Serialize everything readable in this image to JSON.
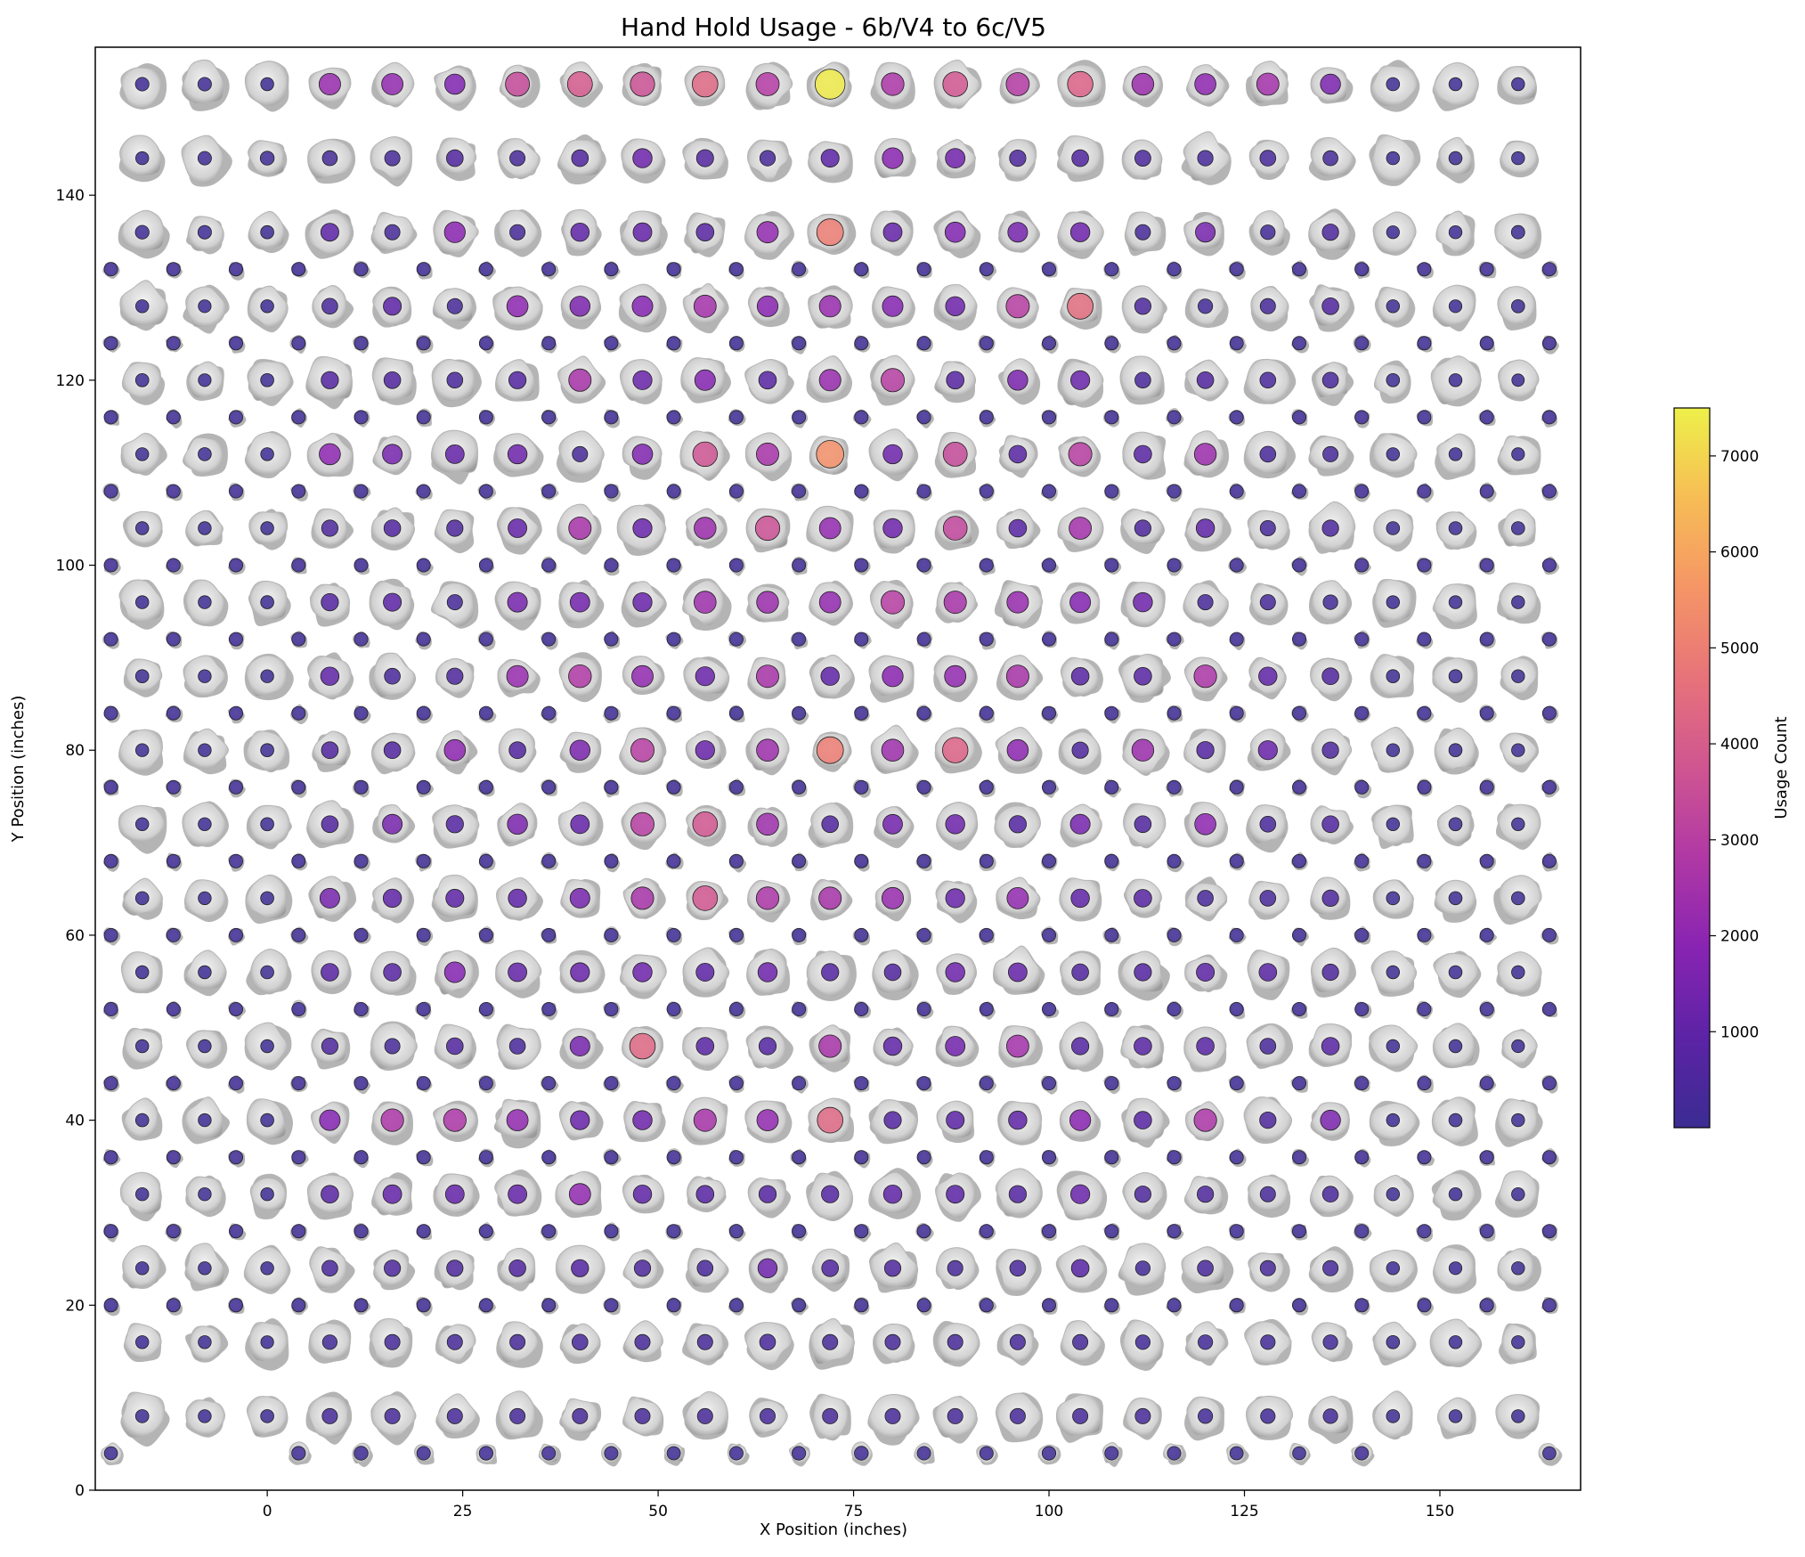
{
  "chart_data": {
    "type": "scatter",
    "title": "Hand Hold Usage - 6b/V4 to 6c/V5",
    "xlabel": "X Position (inches)",
    "ylabel": "Y Position (inches)",
    "colorbar_label": "Usage Count",
    "colormap": "plasma",
    "xlim": [
      -22,
      168
    ],
    "ylim": [
      0,
      156
    ],
    "xticks": [
      0,
      25,
      50,
      75,
      100,
      125,
      150
    ],
    "yticks": [
      0,
      20,
      40,
      60,
      80,
      100,
      120,
      140
    ],
    "colorbar_range": [
      0,
      7500
    ],
    "colorbar_ticks": [
      1000,
      2000,
      3000,
      4000,
      5000,
      6000,
      7000
    ],
    "grid": false,
    "main_columns_x": [
      -16,
      -8,
      0,
      8,
      16,
      24,
      32,
      40,
      48,
      56,
      64,
      72,
      80,
      88,
      96,
      104,
      112,
      120,
      128,
      136,
      144,
      152,
      160
    ],
    "main_rows_y": [
      152,
      144,
      136,
      128,
      120,
      112,
      104,
      96,
      88,
      80,
      72,
      64,
      56,
      48,
      40,
      32,
      24,
      16,
      8
    ],
    "main_grid_usage": [
      [
        80,
        90,
        40,
        2200,
        2100,
        1700,
        3400,
        3900,
        3600,
        4300,
        2900,
        7400,
        2700,
        3800,
        2900,
        4200,
        2300,
        2000,
        2500,
        1600,
        60,
        50,
        40
      ],
      [
        40,
        80,
        110,
        250,
        300,
        600,
        300,
        600,
        1300,
        650,
        350,
        900,
        1900,
        1400,
        500,
        600,
        450,
        350,
        400,
        250,
        50,
        60,
        40
      ],
      [
        100,
        80,
        60,
        900,
        300,
        1900,
        300,
        1000,
        1100,
        800,
        2100,
        5000,
        1100,
        1700,
        1500,
        1300,
        300,
        1500,
        200,
        500,
        30,
        40,
        70
      ],
      [
        40,
        30,
        40,
        400,
        900,
        300,
        2000,
        1600,
        1800,
        2500,
        1900,
        2200,
        1800,
        1300,
        3000,
        4500,
        500,
        200,
        300,
        600,
        50,
        30,
        60
      ],
      [
        60,
        30,
        60,
        700,
        600,
        400,
        700,
        2600,
        1200,
        1800,
        800,
        2200,
        3000,
        800,
        1600,
        1200,
        400,
        600,
        400,
        400,
        60,
        50,
        20
      ],
      [
        50,
        60,
        40,
        2000,
        1500,
        1100,
        1300,
        300,
        1700,
        3700,
        2600,
        5500,
        1300,
        3400,
        800,
        3000,
        800,
        2300,
        400,
        300,
        50,
        40,
        30
      ],
      [
        50,
        40,
        40,
        500,
        600,
        500,
        1100,
        2600,
        1200,
        2300,
        3600,
        2100,
        1300,
        3300,
        800,
        2500,
        500,
        1000,
        300,
        500,
        60,
        60,
        60
      ],
      [
        40,
        50,
        60,
        700,
        900,
        300,
        1500,
        1400,
        1200,
        2400,
        2300,
        2100,
        3000,
        2600,
        2200,
        1800,
        1300,
        300,
        300,
        200,
        40,
        50,
        40
      ],
      [
        60,
        40,
        40,
        1000,
        400,
        500,
        2200,
        2800,
        2100,
        1200,
        2600,
        1000,
        1900,
        2100,
        2600,
        800,
        800,
        2700,
        1000,
        600,
        60,
        60,
        50
      ],
      [
        50,
        40,
        60,
        600,
        600,
        2000,
        600,
        1600,
        3000,
        1200,
        2400,
        5000,
        2400,
        4200,
        2000,
        500,
        2300,
        700,
        1200,
        500,
        50,
        60,
        50
      ],
      [
        50,
        40,
        60,
        600,
        1500,
        700,
        1600,
        1100,
        3000,
        3800,
        2400,
        600,
        1400,
        1300,
        700,
        1500,
        600,
        2000,
        400,
        600,
        40,
        60,
        50
      ],
      [
        60,
        50,
        60,
        1500,
        1000,
        900,
        1000,
        1500,
        2600,
        3800,
        2700,
        2600,
        2200,
        1200,
        2100,
        1000,
        800,
        400,
        400,
        500,
        60,
        60,
        60
      ],
      [
        40,
        40,
        60,
        800,
        800,
        1800,
        1100,
        1200,
        1300,
        900,
        1300,
        700,
        600,
        1300,
        1100,
        600,
        700,
        900,
        800,
        500,
        50,
        60,
        40
      ],
      [
        50,
        40,
        40,
        500,
        300,
        600,
        400,
        1500,
        4300,
        800,
        700,
        2600,
        1000,
        1400,
        2500,
        700,
        800,
        800,
        400,
        800,
        50,
        40,
        30
      ],
      [
        60,
        40,
        60,
        1800,
        2700,
        2700,
        2100,
        1200,
        1300,
        2600,
        2100,
        4300,
        700,
        900,
        1000,
        1900,
        800,
        2700,
        500,
        1600,
        40,
        60,
        50
      ],
      [
        50,
        50,
        40,
        800,
        1100,
        1100,
        1100,
        2100,
        1000,
        800,
        700,
        700,
        1000,
        900,
        700,
        1200,
        500,
        500,
        300,
        400,
        50,
        40,
        50
      ],
      [
        40,
        50,
        40,
        400,
        500,
        500,
        600,
        700,
        500,
        400,
        1300,
        600,
        500,
        300,
        400,
        800,
        200,
        400,
        300,
        300,
        40,
        30,
        50
      ],
      [
        40,
        50,
        30,
        200,
        300,
        300,
        300,
        400,
        300,
        300,
        400,
        300,
        300,
        300,
        300,
        300,
        200,
        200,
        200,
        200,
        60,
        50,
        40
      ],
      [
        60,
        40,
        60,
        300,
        300,
        300,
        300,
        300,
        300,
        300,
        300,
        300,
        300,
        300,
        300,
        300,
        300,
        200,
        200,
        200,
        60,
        40,
        50
      ]
    ],
    "intermediate_columns_x": [
      -20,
      -12,
      -4,
      4,
      12,
      20,
      28,
      36,
      44,
      52,
      60,
      68,
      76,
      84,
      92,
      100,
      108,
      116,
      124,
      132,
      140,
      148,
      156,
      164
    ],
    "intermediate_rows_y": [
      132,
      124,
      116,
      108,
      100,
      92,
      84,
      76,
      68,
      60,
      52,
      44,
      36,
      28,
      20
    ],
    "intermediate_usage": 80,
    "bottom_row": {
      "y": 4,
      "x": [
        -20,
        4,
        12,
        20,
        28,
        36,
        44,
        52,
        60,
        68,
        76,
        84,
        92,
        100,
        108,
        116,
        124,
        132,
        140,
        164
      ],
      "usage": [
        60,
        100,
        120,
        80,
        100,
        90,
        80,
        70,
        90,
        100,
        120,
        80,
        90,
        100,
        80,
        90,
        70,
        60,
        80,
        60
      ]
    }
  }
}
